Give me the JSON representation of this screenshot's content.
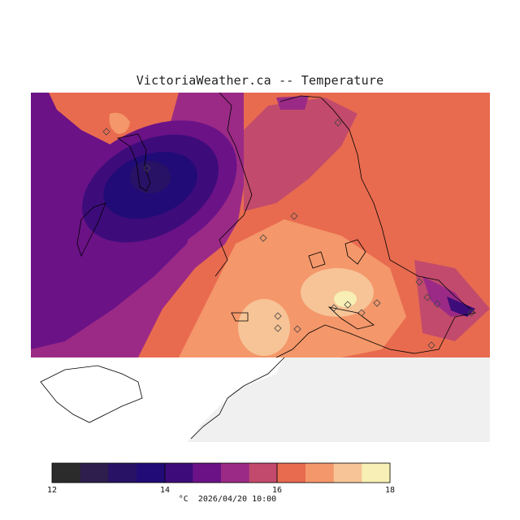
{
  "header": {
    "title": "VictoriaWeather.ca -- Temperature"
  },
  "colorbar": {
    "min": 12,
    "max": 18,
    "tick_labels": [
      "12",
      "14",
      "16",
      "18"
    ],
    "ticks": [
      12,
      14,
      16,
      18
    ],
    "colors": [
      "#2b2b2b",
      "#2d1e4e",
      "#271265",
      "#210b76",
      "#3d0c7a",
      "#6b1287",
      "#9b2a86",
      "#c24a6c",
      "#e86b4f",
      "#f4976a",
      "#f6c496",
      "#f7efb5"
    ],
    "unit": "°C",
    "timestamp": "2026/04/20 10:00"
  },
  "map": {
    "land_color": "#ffffff",
    "background_color": "#f0f0f0",
    "station_marker": "diamond-icon",
    "station_count": 22
  }
}
